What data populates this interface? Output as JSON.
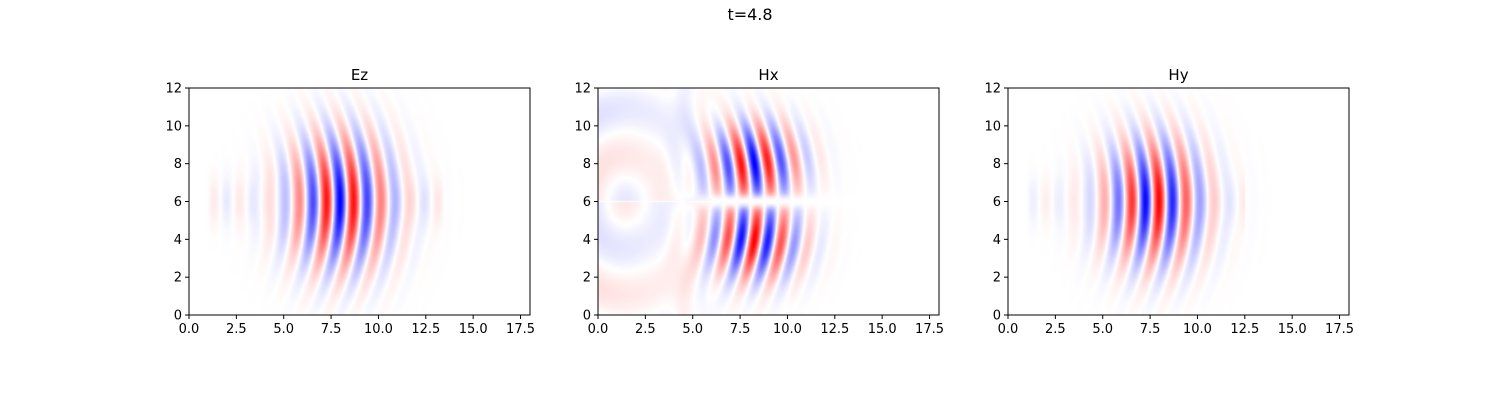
{
  "figure": {
    "suptitle": "t=4.8"
  },
  "colors": {
    "positive": "#ff0000",
    "negative": "#0000ff",
    "zero": "#ffffff",
    "axes": "#000000"
  },
  "chart_data": [
    {
      "type": "heatmap",
      "title": "Ez",
      "xlabel": "",
      "ylabel": "",
      "xlim": [
        0,
        18
      ],
      "ylim": [
        0,
        12
      ],
      "xticks": [
        0.0,
        2.5,
        5.0,
        7.5,
        10.0,
        12.5,
        15.0,
        17.5
      ],
      "xtick_labels": [
        "0.0",
        "2.5",
        "5.0",
        "7.5",
        "10.0",
        "12.5",
        "15.0",
        "17.5"
      ],
      "yticks": [
        0,
        2,
        4,
        6,
        8,
        10,
        12
      ],
      "ytick_labels": [
        "0",
        "2",
        "4",
        "6",
        "8",
        "10",
        "12"
      ],
      "colormap": "bwr",
      "grid": false,
      "field": {
        "pattern": "gaussian-beam",
        "x_center": 8.0,
        "x_width": 2.6,
        "y_center": 6,
        "y_width": 3.2,
        "wavelength": 1.45,
        "phase": 0.0,
        "amplitude": 1.0,
        "tail_x": [
          1,
          13.5
        ],
        "tail_amplitude": 0.08
      }
    },
    {
      "type": "heatmap",
      "title": "Hx",
      "xlabel": "",
      "ylabel": "",
      "xlim": [
        0,
        18
      ],
      "ylim": [
        0,
        12
      ],
      "xticks": [
        0.0,
        2.5,
        5.0,
        7.5,
        10.0,
        12.5,
        15.0,
        17.5
      ],
      "xtick_labels": [
        "0.0",
        "2.5",
        "5.0",
        "7.5",
        "10.0",
        "12.5",
        "15.0",
        "17.5"
      ],
      "yticks": [
        0,
        2,
        4,
        6,
        8,
        10,
        12
      ],
      "ytick_labels": [
        "0",
        "2",
        "4",
        "6",
        "8",
        "10",
        "12"
      ],
      "colormap": "bwr",
      "grid": false,
      "field": {
        "pattern": "split-beam",
        "x_center": 8.2,
        "x_width": 2.3,
        "y_center": 6,
        "y_width": 3.6,
        "wavelength": 1.45,
        "phase": 1.2,
        "amplitude": 1.0,
        "lobe_offset": 2.0,
        "background_amplitude": 0.12
      }
    },
    {
      "type": "heatmap",
      "title": "Hy",
      "xlabel": "",
      "ylabel": "",
      "xlim": [
        0,
        18
      ],
      "ylim": [
        0,
        12
      ],
      "xticks": [
        0.0,
        2.5,
        5.0,
        7.5,
        10.0,
        12.5,
        15.0,
        17.5
      ],
      "xtick_labels": [
        "0.0",
        "2.5",
        "5.0",
        "7.5",
        "10.0",
        "12.5",
        "15.0",
        "17.5"
      ],
      "yticks": [
        0,
        2,
        4,
        6,
        8,
        10,
        12
      ],
      "ytick_labels": [
        "0",
        "2",
        "4",
        "6",
        "8",
        "10",
        "12"
      ],
      "colormap": "bwr",
      "grid": false,
      "field": {
        "pattern": "gaussian-beam",
        "x_center": 7.7,
        "x_width": 2.5,
        "y_center": 6,
        "y_width": 3.0,
        "wavelength": 1.45,
        "phase": 3.14,
        "amplitude": 1.0,
        "tail_x": [
          1,
          12.5
        ],
        "tail_amplitude": 0.06
      }
    }
  ]
}
